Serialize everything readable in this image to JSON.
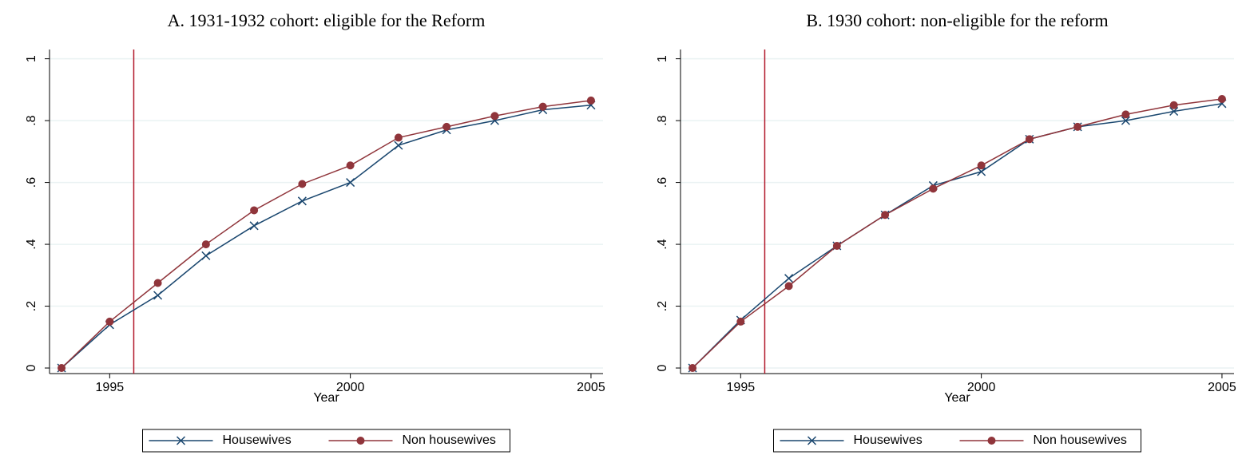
{
  "chart_data": [
    {
      "type": "line",
      "title": "A. 1931-1932 cohort: eligible for the Reform",
      "xlabel": "Year",
      "x": [
        1994,
        1995,
        1996,
        1997,
        1998,
        1999,
        2000,
        2001,
        2002,
        2003,
        2004,
        2005
      ],
      "series": [
        {
          "name": "Housewives",
          "color": "#1a476f",
          "marker": "x",
          "values": [
            0,
            0.14,
            0.235,
            0.363,
            0.46,
            0.54,
            0.6,
            0.72,
            0.77,
            0.8,
            0.835,
            0.85
          ]
        },
        {
          "name": "Non housewives",
          "color": "#90353b",
          "marker": "circle",
          "values": [
            0,
            0.15,
            0.275,
            0.4,
            0.51,
            0.595,
            0.655,
            0.745,
            0.78,
            0.815,
            0.845,
            0.865
          ]
        }
      ],
      "reference_line": {
        "x": 1995.5,
        "color": "#b2182b"
      },
      "xlim": [
        1993.75,
        2005.25
      ],
      "xticks": [
        1995,
        2000,
        2005
      ],
      "ylim": [
        -0.018,
        1.03
      ],
      "yticks": [
        0,
        {
          "value": 0.2,
          "label": ".2"
        },
        {
          "value": 0.4,
          "label": ".4"
        },
        {
          "value": 0.6,
          "label": ".6"
        },
        {
          "value": 0.8,
          "label": ".8"
        },
        1
      ],
      "grid": true,
      "legend": "bottom"
    },
    {
      "type": "line",
      "title": "B. 1930 cohort: non-eligible for the reform",
      "xlabel": "Year",
      "x": [
        1994,
        1995,
        1996,
        1997,
        1998,
        1999,
        2000,
        2001,
        2002,
        2003,
        2004,
        2005
      ],
      "series": [
        {
          "name": "Housewives",
          "color": "#1a476f",
          "marker": "x",
          "values": [
            0,
            0.155,
            0.29,
            0.395,
            0.495,
            0.59,
            0.635,
            0.74,
            0.78,
            0.8,
            0.83,
            0.855
          ]
        },
        {
          "name": "Non housewives",
          "color": "#90353b",
          "marker": "circle",
          "values": [
            0,
            0.15,
            0.265,
            0.395,
            0.495,
            0.58,
            0.655,
            0.74,
            0.78,
            0.82,
            0.85,
            0.87
          ]
        }
      ],
      "reference_line": {
        "x": 1995.5,
        "color": "#b2182b"
      },
      "xlim": [
        1993.75,
        2005.25
      ],
      "xticks": [
        1995,
        2000,
        2005
      ],
      "ylim": [
        -0.018,
        1.03
      ],
      "yticks": [
        0,
        {
          "value": 0.2,
          "label": ".2"
        },
        {
          "value": 0.4,
          "label": ".4"
        },
        {
          "value": 0.6,
          "label": ".6"
        },
        {
          "value": 0.8,
          "label": ".8"
        },
        1
      ],
      "grid": true,
      "legend": "bottom"
    }
  ]
}
